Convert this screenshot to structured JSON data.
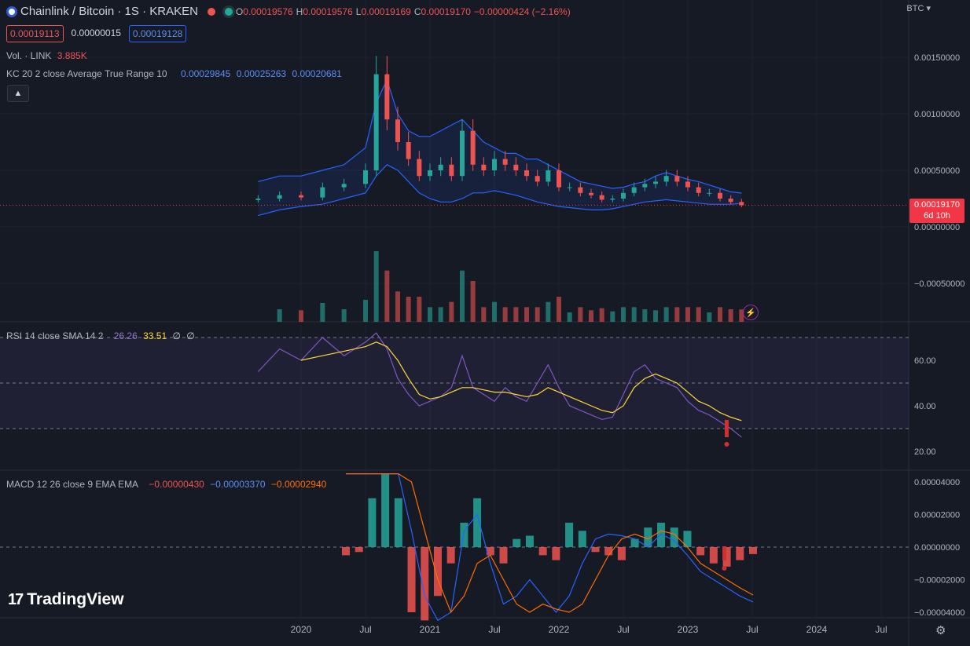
{
  "header": {
    "symbol": "Chainlink / Bitcoin · 1S · KRAKEN",
    "ohlc": [
      {
        "label": "O",
        "value": "0.00019576"
      },
      {
        "label": "H",
        "value": "0.00019576"
      },
      {
        "label": "L",
        "value": "0.00019169"
      },
      {
        "label": "C",
        "value": "0.00019170"
      }
    ],
    "change": "−0.00000424 (−2.16%)",
    "sell_price": "0.00019113",
    "spread": "0.00000015",
    "buy_price": "0.00019128",
    "collapse_icon": "chevron-up-icon"
  },
  "volume_legend": {
    "label": "Vol. · LINK",
    "value": "3.885K"
  },
  "kc_legend": {
    "label": "KC 20 2 close Average True Range 10",
    "values": [
      "0.00029845",
      "0.00025263",
      "0.00020681"
    ]
  },
  "rsi_legend": {
    "label": "RSI 14 close SMA 14 2",
    "rsi": "26.26",
    "sma": "33.51",
    "extra1": "∅",
    "extra2": "∅"
  },
  "macd_legend": {
    "label": "MACD 12 26 close 9 EMA EMA",
    "hist": "−0.00000430",
    "macd": "−0.00003370",
    "signal": "−0.00002940"
  },
  "price_axis": {
    "currency": "BTC",
    "ticks": [
      "0.00150000",
      "0.00100000",
      "0.00050000",
      "0.00000000",
      "−0.00050000"
    ],
    "last_price": "0.00019170",
    "countdown": "6d 10h"
  },
  "rsi_axis": {
    "ticks": [
      "60.00",
      "40.00",
      "20.00"
    ]
  },
  "macd_axis": {
    "ticks": [
      "0.00004000",
      "0.00002000",
      "0.00000000",
      "−0.00002000",
      "−0.00004000"
    ]
  },
  "time_axis": {
    "ticks": [
      "2020",
      "Jul",
      "2021",
      "Jul",
      "2022",
      "Jul",
      "2023",
      "Jul",
      "2024",
      "Jul"
    ]
  },
  "branding": {
    "logo": "TradingView"
  },
  "colors": {
    "up": "#26a69a",
    "down": "#ef5350",
    "kc": "#2962ff",
    "rsi": "#7e57c2",
    "rsi_sma": "#fdd835",
    "macd": "#2962ff",
    "signal": "#ff6d00"
  },
  "chart_data": {
    "type": "candlestick",
    "interval": "1W",
    "price": {
      "dates": [
        "2019-09",
        "2019-11",
        "2020-01",
        "2020-03",
        "2020-05",
        "2020-07",
        "2020-08",
        "2020-09",
        "2020-10",
        "2020-11",
        "2020-12",
        "2021-01",
        "2021-02",
        "2021-03",
        "2021-04",
        "2021-05",
        "2021-06",
        "2021-07",
        "2021-08",
        "2021-09",
        "2021-10",
        "2021-11",
        "2021-12",
        "2022-01",
        "2022-02",
        "2022-03",
        "2022-04",
        "2022-05",
        "2022-06",
        "2022-07",
        "2022-08",
        "2022-09",
        "2022-10",
        "2022-11",
        "2022-12",
        "2023-01",
        "2023-02",
        "2023-03",
        "2023-04",
        "2023-05",
        "2023-06"
      ],
      "close": [
        0.00025,
        0.00028,
        0.00026,
        0.00035,
        0.00038,
        0.0005,
        0.00135,
        0.00095,
        0.00075,
        0.0006,
        0.00045,
        0.0005,
        0.00055,
        0.00045,
        0.00085,
        0.00055,
        0.0005,
        0.0006,
        0.00055,
        0.0005,
        0.00045,
        0.0004,
        0.0005,
        0.00035,
        0.00035,
        0.0003,
        0.00028,
        0.00024,
        0.00025,
        0.0003,
        0.00035,
        0.00038,
        0.0004,
        0.00045,
        0.0004,
        0.00035,
        0.0003,
        0.0003,
        0.00025,
        0.00022,
        0.0001917
      ],
      "kc_upper": [
        0.0004,
        0.00045,
        0.00045,
        0.0005,
        0.00055,
        0.0007,
        0.0011,
        0.0013,
        0.001,
        0.00085,
        0.0008,
        0.0008,
        0.00085,
        0.0009,
        0.00095,
        0.00085,
        0.00075,
        0.0007,
        0.00065,
        0.00065,
        0.0006,
        0.0006,
        0.00055,
        0.0005,
        0.00045,
        0.0004,
        0.00038,
        0.00036,
        0.00034,
        0.00035,
        0.00038,
        0.0004,
        0.00045,
        0.00048,
        0.00045,
        0.00042,
        0.0004,
        0.00037,
        0.00034,
        0.00031,
        0.00029845
      ],
      "kc_lower": [
        0.0001,
        0.00015,
        0.00018,
        0.0002,
        0.00025,
        0.0003,
        0.00045,
        0.00055,
        0.0005,
        0.0004,
        0.0003,
        0.00025,
        0.00022,
        0.00022,
        0.00025,
        0.0003,
        0.0003,
        0.00032,
        0.0003,
        0.00028,
        0.00025,
        0.00022,
        0.0002,
        0.00018,
        0.00017,
        0.00016,
        0.00015,
        0.00015,
        0.00016,
        0.00018,
        0.0002,
        0.00022,
        0.00023,
        0.00024,
        0.00023,
        0.00022,
        0.00021,
        0.0002,
        0.0002,
        0.0002,
        0.00020681
      ]
    },
    "rsi": {
      "ylim": [
        15,
        75
      ],
      "bands": [
        30,
        50,
        70
      ],
      "rsi": [
        55,
        65,
        60,
        70,
        62,
        68,
        72,
        65,
        52,
        45,
        40,
        42,
        44,
        48,
        62,
        48,
        45,
        42,
        48,
        44,
        42,
        50,
        58,
        48,
        40,
        38,
        36,
        34,
        35,
        45,
        55,
        58,
        52,
        50,
        48,
        42,
        38,
        36,
        33,
        30,
        26.26
      ],
      "sma": [
        null,
        null,
        60,
        62,
        64,
        66,
        68,
        66,
        60,
        52,
        45,
        43,
        44,
        46,
        48,
        48,
        47,
        46,
        46,
        45,
        44,
        45,
        48,
        46,
        44,
        42,
        40,
        38,
        37,
        40,
        48,
        52,
        54,
        52,
        50,
        46,
        42,
        40,
        37,
        35,
        33.51
      ]
    },
    "macd": {
      "ylim": [
        -4.5e-05,
        4.5e-05
      ],
      "hist": [
        -5e-06,
        -3e-06,
        3e-05,
        4.5e-05,
        3e-05,
        -4e-05,
        -4.5e-05,
        -3e-05,
        -1e-05,
        1.5e-05,
        3e-05,
        -5e-06,
        -1e-05,
        5e-06,
        7e-06,
        -5e-06,
        -8e-06,
        1.5e-05,
        1e-05,
        -3e-06,
        -5e-06,
        -8e-06,
        5e-06,
        1.2e-05,
        1.5e-05,
        1.2e-05,
        1e-05,
        -5e-06,
        -1e-05,
        -1.2e-05,
        -8e-06,
        -4.3e-06
      ],
      "macd": [
        4.5e-05,
        4.5e-05,
        4.5e-05,
        4.5e-05,
        4.5e-05,
        1e-05,
        -3e-05,
        -4.5e-05,
        -4e-05,
        1e-05,
        2e-05,
        -1e-05,
        -3.5e-05,
        -3e-05,
        -2e-05,
        -3e-05,
        -4e-05,
        -3e-05,
        -1e-05,
        5e-06,
        8e-06,
        7e-06,
        5e-06,
        0.0,
        8e-06,
        4e-06,
        -5e-06,
        -1.5e-05,
        -2e-05,
        -2.5e-05,
        -3e-05,
        -3.37e-05
      ],
      "signal": [
        4.5e-05,
        4.5e-05,
        4.5e-05,
        4.5e-05,
        4.5e-05,
        4e-05,
        1e-05,
        -2e-05,
        -4e-05,
        -3e-05,
        -1e-05,
        -5e-06,
        -2e-05,
        -3.5e-05,
        -4e-05,
        -3.5e-05,
        -3.8e-05,
        -4e-05,
        -3.5e-05,
        -2e-05,
        -5e-06,
        5e-06,
        8e-06,
        5e-06,
        1e-05,
        8e-06,
        0.0,
        -1e-05,
        -1.5e-05,
        -2e-05,
        -2.5e-05,
        -2.94e-05
      ]
    }
  }
}
